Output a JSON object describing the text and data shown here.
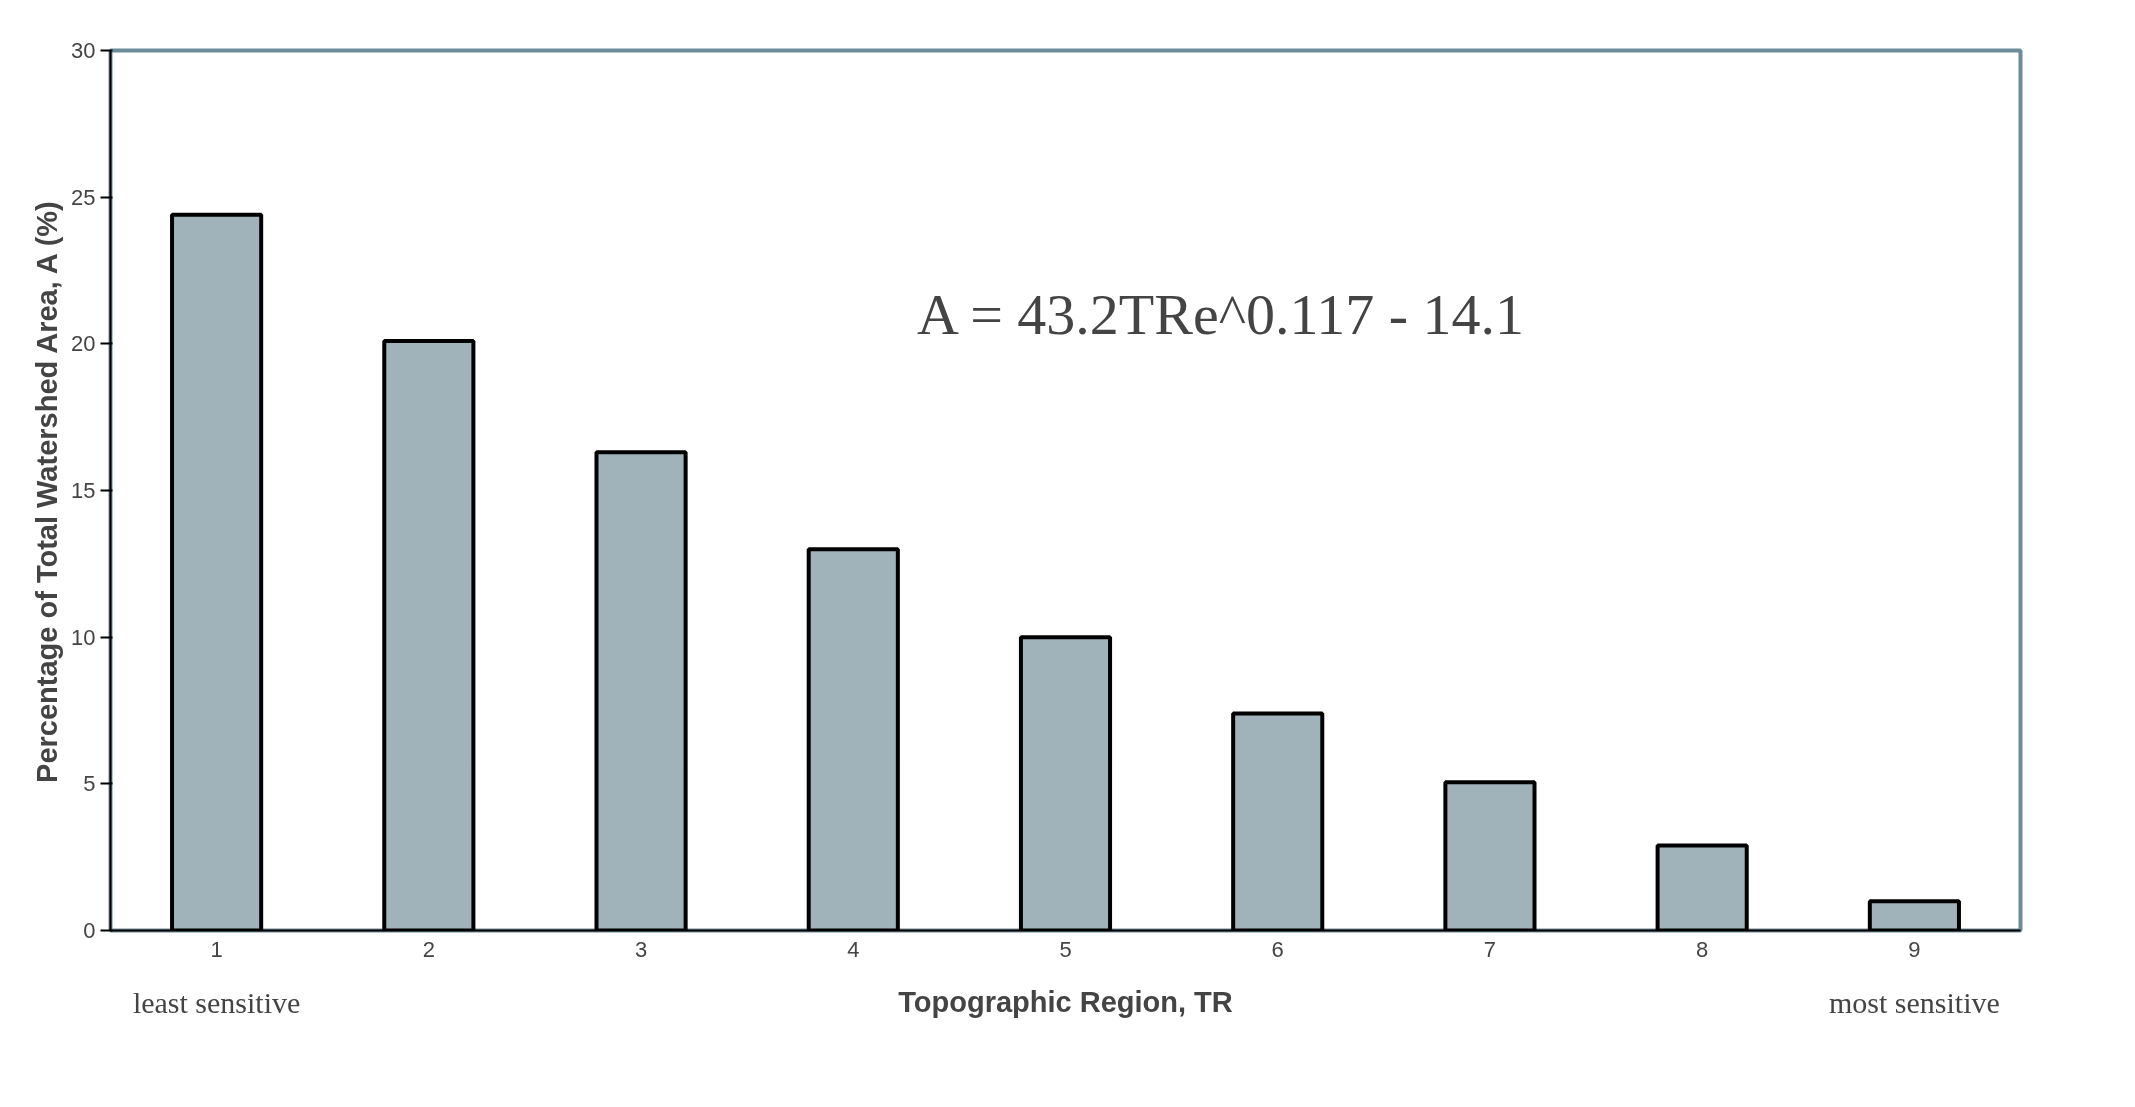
{
  "chart_data": {
    "type": "bar",
    "xlabel": "Topographic Region, TR",
    "ylabel": "Percentage of Total Watershed Area, A (%)",
    "categories": [
      "1",
      "2",
      "3",
      "4",
      "5",
      "6",
      "7",
      "8",
      "9"
    ],
    "values": [
      24.4,
      20.1,
      16.3,
      13.0,
      10.0,
      7.4,
      5.05,
      2.9,
      1.0
    ],
    "color": "#a0b3ba",
    "ylim": [
      0,
      30
    ],
    "yticks": [
      0,
      5,
      10,
      15,
      20,
      25,
      30
    ],
    "grid": false,
    "annotations": [
      "A = 43.2TRe^0.117 - 14.1",
      "least sensitive",
      "most sensitive"
    ]
  }
}
